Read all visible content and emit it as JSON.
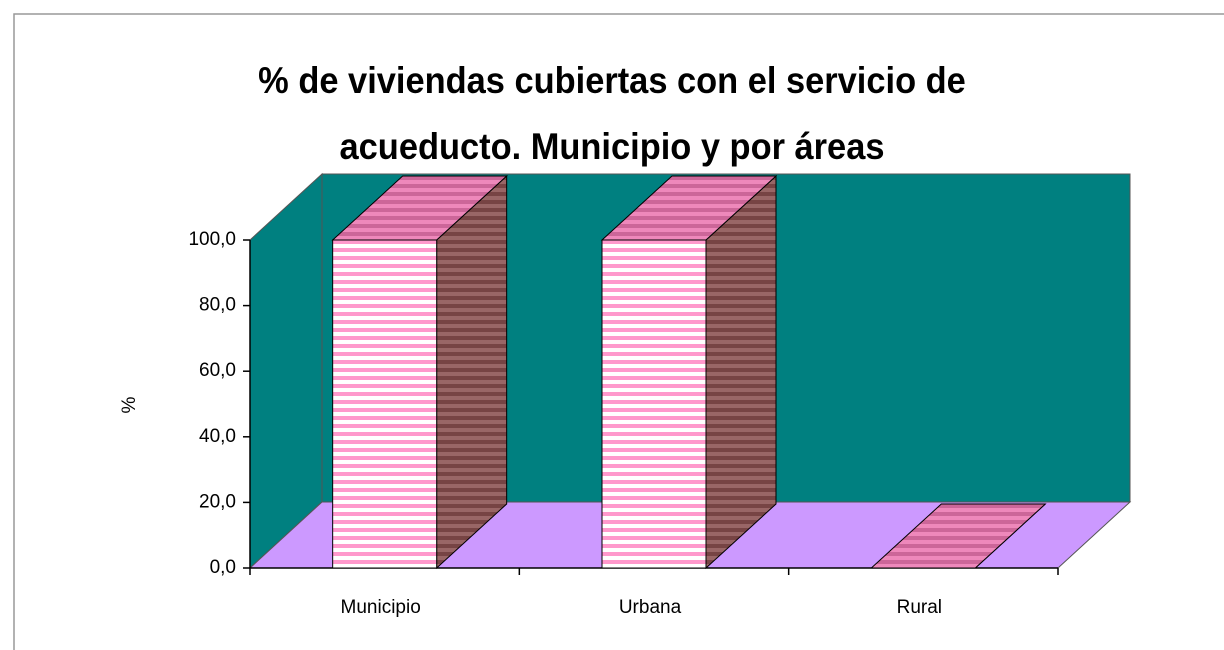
{
  "chart_data": {
    "type": "bar3d",
    "title": "% de viviendas cubiertas con el servicio de acueducto. Municipio y por áreas",
    "y_label": "%",
    "categories": [
      "Municipio",
      "Urbana",
      "Rural"
    ],
    "values": [
      100,
      100,
      0
    ],
    "color": "#ff99cc",
    "wall_color": "#008080",
    "floor_color": "#cc99ff",
    "ylim": [
      0,
      100
    ],
    "yticks": [
      {
        "value": 0,
        "label": "0,0"
      },
      {
        "value": 20,
        "label": "20,0"
      },
      {
        "value": 40,
        "label": "40,0"
      },
      {
        "value": 60,
        "label": "60,0"
      },
      {
        "value": 80,
        "label": "80,0"
      },
      {
        "value": 100,
        "label": "100,0"
      }
    ],
    "grid": false
  }
}
